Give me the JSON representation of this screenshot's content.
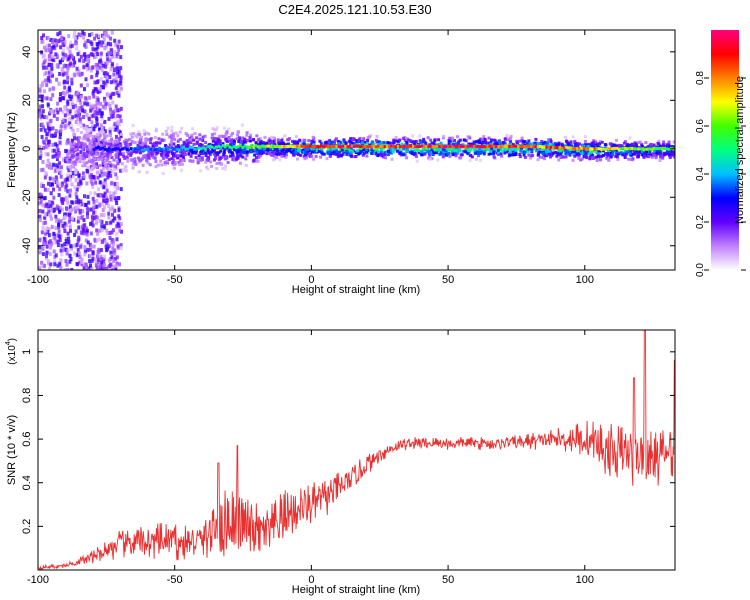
{
  "title": "C2E4.2025.121.10.53.E30",
  "chart_data": [
    {
      "type": "heatmap",
      "title": "C2E4.2025.121.10.53.E30",
      "xlabel": "Height of straight line (km)",
      "ylabel": "Frequency (Hz)",
      "xlim": [
        -100,
        133
      ],
      "ylim": [
        -50,
        49
      ],
      "xticks": [
        -100,
        -50,
        0,
        50,
        100
      ],
      "yticks": [
        -40,
        -20,
        0,
        20,
        40
      ],
      "colorbar": {
        "label": "Normalized spectral amplitude",
        "range": [
          0,
          1
        ],
        "ticks": [
          0.0,
          0.2,
          0.4,
          0.6,
          0.8
        ],
        "tick_labels": [
          "0.0",
          "0.2",
          "0.4",
          "0.6",
          "0.8"
        ],
        "colormap": [
          "#ffffff",
          "#c080ff",
          "#6000ff",
          "#0000ff",
          "#00c0ff",
          "#00ff80",
          "#40ff00",
          "#ffff00",
          "#ff8000",
          "#ff0000",
          "#ff0080"
        ]
      },
      "ridge": {
        "x": [
          -90,
          -70,
          -50,
          -30,
          -10,
          0,
          20,
          40,
          60,
          80,
          100,
          120,
          133
        ],
        "frequency": [
          0,
          0,
          0,
          1,
          1,
          1,
          1,
          1,
          1,
          1,
          0,
          0,
          0
        ],
        "peak_amplitude": [
          0.3,
          0.35,
          0.45,
          0.6,
          0.8,
          0.95,
          1.0,
          1.0,
          1.0,
          0.95,
          0.9,
          0.7,
          0.6
        ]
      }
    },
    {
      "type": "line",
      "xlabel": "Height of straight line (km)",
      "ylabel": "SNR (10 * v/v)",
      "y_multiplier_label": "(x10",
      "y_multiplier_exp": "4",
      "xlim": [
        -100,
        133
      ],
      "ylim": [
        0.0,
        1.1
      ],
      "xticks": [
        -100,
        -50,
        0,
        50,
        100
      ],
      "yticks": [
        0.2,
        0.4,
        0.6,
        0.8,
        1.0
      ],
      "ytick_labels": [
        "0.2",
        "0.4",
        "0.6",
        "0.8",
        "1"
      ],
      "series": [
        {
          "name": "SNR",
          "color": "#e83030",
          "x": [
            -100,
            -90,
            -80,
            -75,
            -70,
            -60,
            -50,
            -45,
            -40,
            -35,
            -30,
            -25,
            -20,
            -15,
            -10,
            -5,
            0,
            5,
            10,
            15,
            20,
            25,
            30,
            35,
            40,
            50,
            60,
            70,
            80,
            90,
            100,
            105,
            110,
            115,
            120,
            125,
            130,
            133
          ],
          "baseline": [
            0.01,
            0.02,
            0.06,
            0.09,
            0.12,
            0.13,
            0.13,
            0.12,
            0.14,
            0.2,
            0.22,
            0.2,
            0.18,
            0.17,
            0.24,
            0.28,
            0.3,
            0.33,
            0.37,
            0.42,
            0.48,
            0.53,
            0.56,
            0.58,
            0.58,
            0.58,
            0.58,
            0.58,
            0.59,
            0.6,
            0.6,
            0.57,
            0.53,
            0.53,
            0.52,
            0.5,
            0.54,
            0.55
          ],
          "noise": [
            0.01,
            0.01,
            0.03,
            0.05,
            0.07,
            0.08,
            0.09,
            0.08,
            0.08,
            0.17,
            0.17,
            0.15,
            0.13,
            0.13,
            0.13,
            0.11,
            0.1,
            0.09,
            0.08,
            0.06,
            0.05,
            0.04,
            0.03,
            0.03,
            0.03,
            0.03,
            0.03,
            0.03,
            0.04,
            0.05,
            0.09,
            0.12,
            0.14,
            0.14,
            0.16,
            0.14,
            0.12,
            0.12
          ],
          "peaks": [
            {
              "x": 122,
              "y": 1.1
            },
            {
              "x": 118,
              "y": 0.88
            },
            {
              "x": 133,
              "y": 0.96
            },
            {
              "x": -27,
              "y": 0.57
            },
            {
              "x": -34,
              "y": 0.49
            }
          ]
        }
      ]
    }
  ]
}
